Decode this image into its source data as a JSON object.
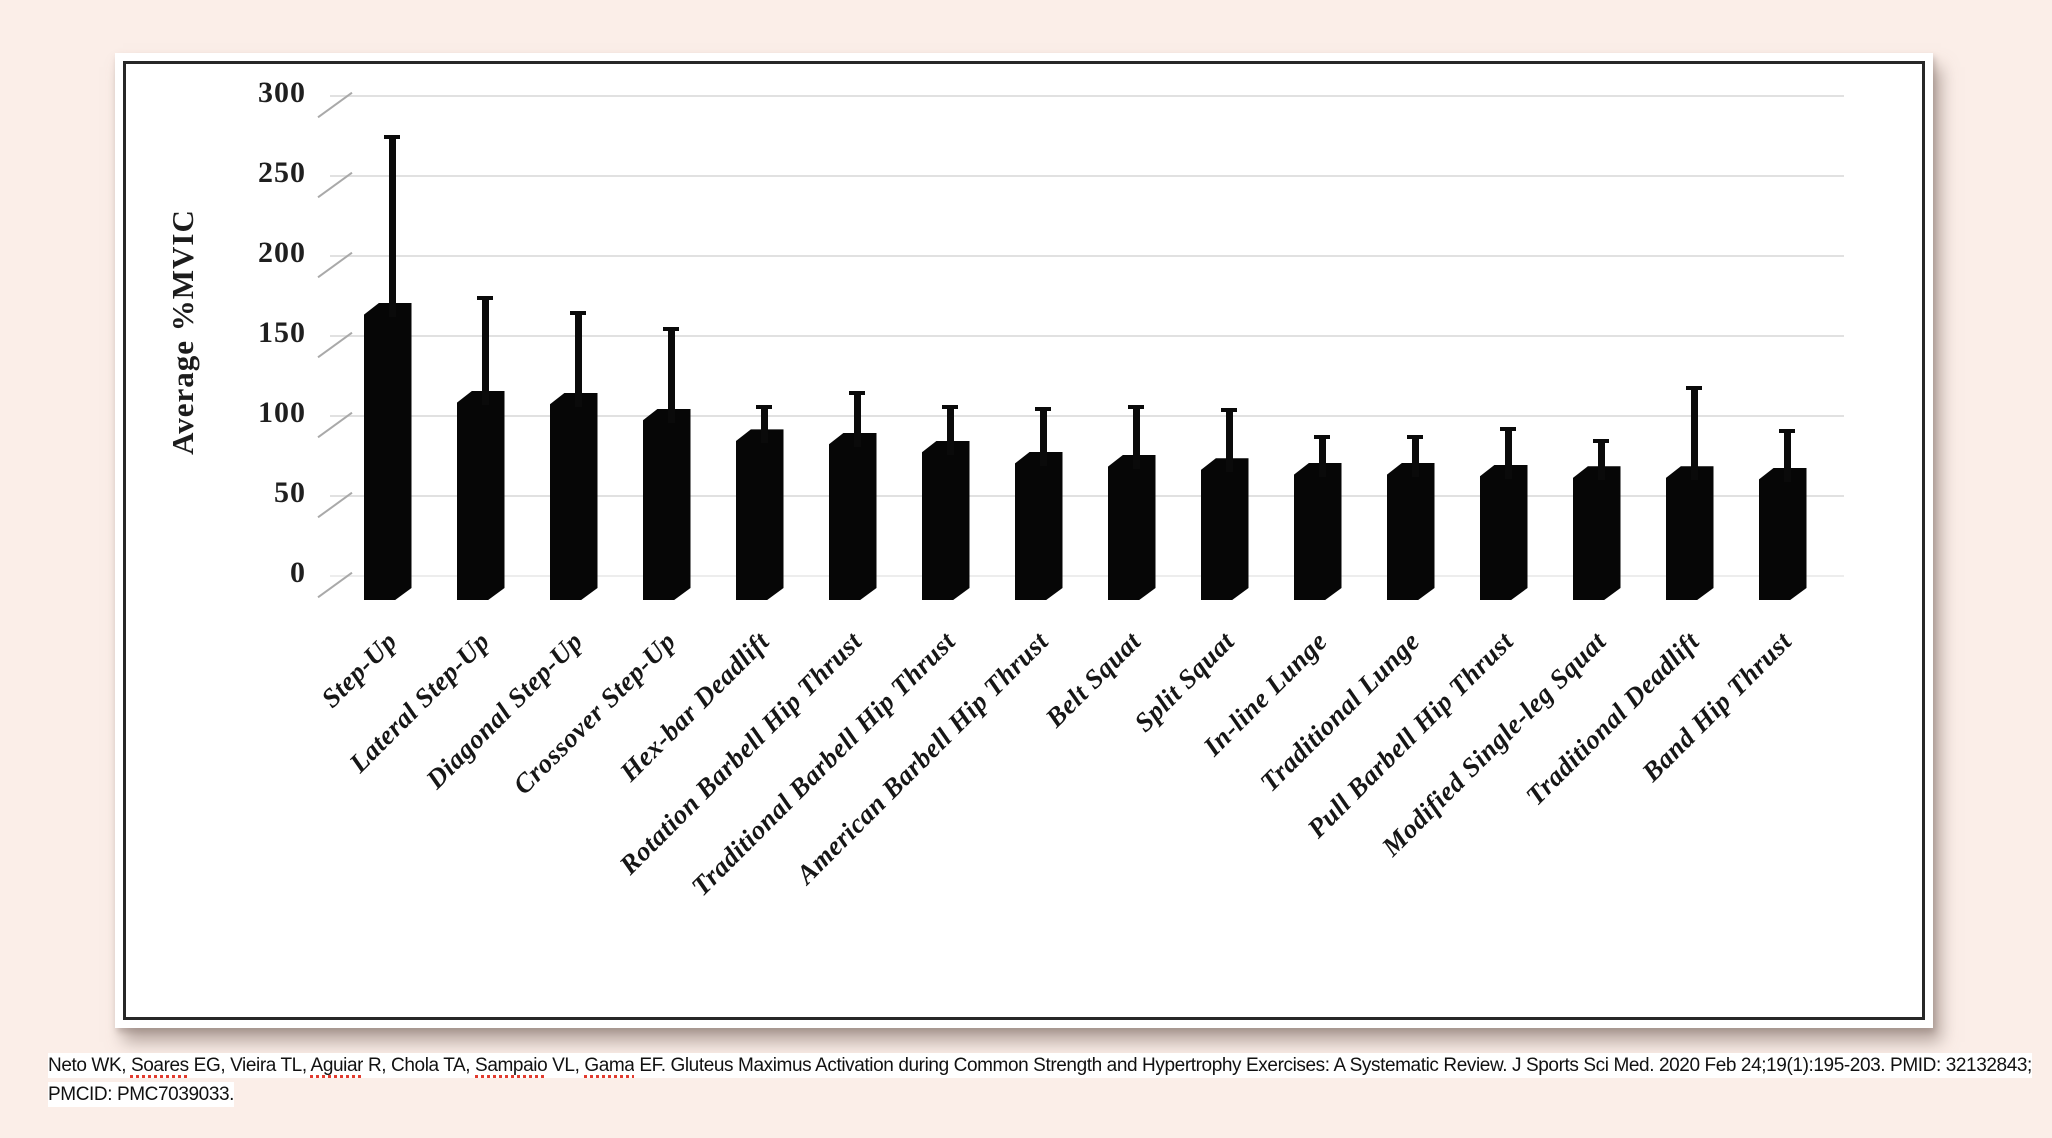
{
  "page": {
    "background_color": "#fbeee8"
  },
  "chart_data": {
    "type": "bar",
    "title": "",
    "xlabel": "",
    "ylabel": "Average %MVIC",
    "ylim": [
      0,
      300
    ],
    "yticks": [
      0,
      50,
      100,
      150,
      200,
      250,
      300
    ],
    "grid": true,
    "legend": "none",
    "bar_color": "#060606",
    "error_bars": "upper standard deviation whiskers",
    "categories": [
      "Step-Up",
      "Lateral Step-Up",
      "Diagonal Step-Up",
      "Crossover Step-Up",
      "Hex-bar Deadlift",
      "Rotation Barbell Hip Thrust",
      "Traditional Barbell Hip Thrust",
      "American Barbell Hip Thrust",
      "Belt Squat",
      "Split Squat",
      "In-line Lunge",
      "Traditional Lunge",
      "Pull Barbell Hip Thrust",
      "Modified Single-leg Squat",
      "Traditional Deadlift",
      "Band Hip Thrust"
    ],
    "series": [
      {
        "name": "Average %MVIC",
        "values": [
          170,
          115,
          114,
          104,
          91,
          89,
          84,
          77,
          75,
          73,
          70,
          70,
          69,
          68,
          68,
          67
        ]
      }
    ],
    "error_upper_tops": [
      274,
      173,
      164,
      154,
      105,
      114,
      105,
      104,
      105,
      103,
      86,
      86,
      91,
      84,
      117,
      90
    ]
  },
  "citation": {
    "segments": [
      {
        "text": "Neto WK, ",
        "squiggle": false
      },
      {
        "text": "Soares",
        "squiggle": true
      },
      {
        "text": " EG, Vieira TL, ",
        "squiggle": false
      },
      {
        "text": "Aguiar",
        "squiggle": true
      },
      {
        "text": " R, Chola TA, ",
        "squiggle": false
      },
      {
        "text": "Sampaio",
        "squiggle": true
      },
      {
        "text": " VL, ",
        "squiggle": false
      },
      {
        "text": "Gama",
        "squiggle": true
      },
      {
        "text": " EF. Gluteus Maximus Activation during Common Strength and Hypertrophy Exercises: A Systematic Review. J Sports Sci Med. 2020 Feb 24;19(1):195-203. PMID: 32132843; PMCID: PMC7039033.",
        "squiggle": false
      }
    ]
  }
}
